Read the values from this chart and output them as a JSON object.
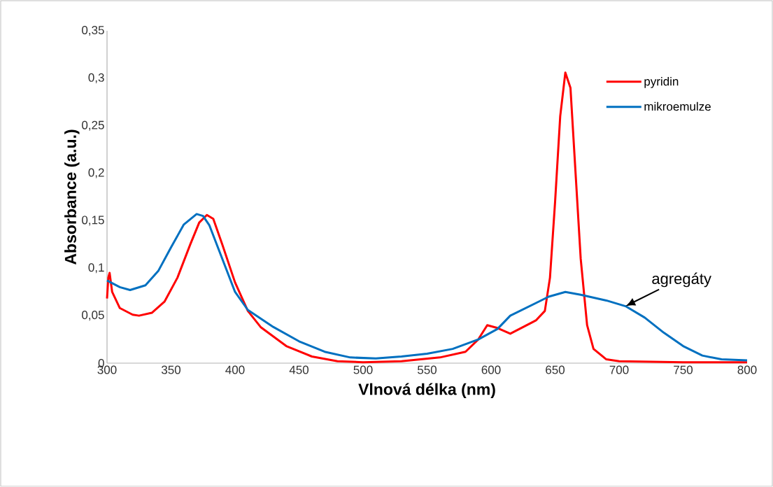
{
  "chart_data": {
    "type": "line",
    "xlabel": "Vlnová délka (nm)",
    "ylabel": "Absorbance (a.u.)",
    "xlim": [
      300,
      800
    ],
    "xticks": [
      300,
      350,
      400,
      450,
      500,
      550,
      600,
      650,
      700,
      750,
      800
    ],
    "ylim": [
      0,
      0.35
    ],
    "yticks": [
      0,
      {
        "value": 0.05,
        "label": "0,05"
      },
      {
        "value": 0.1,
        "label": "0,1"
      },
      {
        "value": 0.15,
        "label": "0,15"
      },
      {
        "value": 0.2,
        "label": "0,2"
      },
      {
        "value": 0.25,
        "label": "0,25"
      },
      {
        "value": 0.3,
        "label": "0,3"
      },
      {
        "value": 0.35,
        "label": "0,35"
      }
    ],
    "grid": false,
    "legend": "top right",
    "marker": "none",
    "line_style": "solid",
    "annotations": [
      {
        "text": "agregáty",
        "x": 705,
        "y": 0.06
      }
    ],
    "series": [
      {
        "name": "pyridin",
        "color": "#ff0000",
        "x": [
          300,
          301,
          302,
          304,
          310,
          320,
          325,
          335,
          345,
          355,
          365,
          372,
          378,
          383,
          390,
          400,
          410,
          420,
          440,
          460,
          480,
          500,
          530,
          560,
          580,
          590,
          597,
          605,
          615,
          625,
          635,
          642,
          646,
          650,
          654,
          658,
          662,
          666,
          670,
          675,
          680,
          690,
          700,
          750,
          800
        ],
        "values": [
          0.068,
          0.09,
          0.095,
          0.075,
          0.058,
          0.051,
          0.05,
          0.053,
          0.065,
          0.09,
          0.125,
          0.148,
          0.156,
          0.152,
          0.125,
          0.085,
          0.055,
          0.038,
          0.018,
          0.007,
          0.002,
          0.001,
          0.002,
          0.006,
          0.012,
          0.025,
          0.04,
          0.037,
          0.031,
          0.038,
          0.045,
          0.055,
          0.09,
          0.17,
          0.26,
          0.306,
          0.29,
          0.2,
          0.11,
          0.04,
          0.015,
          0.004,
          0.002,
          0.001,
          0.001
        ]
      },
      {
        "name": "mikroemulze",
        "color": "#0070c0",
        "x": [
          300,
          310,
          318,
          330,
          340,
          350,
          360,
          370,
          375,
          380,
          390,
          400,
          410,
          430,
          450,
          470,
          490,
          510,
          530,
          550,
          570,
          590,
          605,
          615,
          630,
          645,
          658,
          670,
          690,
          705,
          720,
          735,
          750,
          765,
          780,
          800
        ],
        "values": [
          0.087,
          0.08,
          0.077,
          0.082,
          0.097,
          0.122,
          0.146,
          0.157,
          0.155,
          0.145,
          0.11,
          0.075,
          0.056,
          0.038,
          0.023,
          0.012,
          0.006,
          0.005,
          0.007,
          0.01,
          0.015,
          0.025,
          0.036,
          0.05,
          0.06,
          0.07,
          0.075,
          0.072,
          0.066,
          0.06,
          0.048,
          0.032,
          0.018,
          0.008,
          0.004,
          0.003
        ]
      }
    ]
  }
}
